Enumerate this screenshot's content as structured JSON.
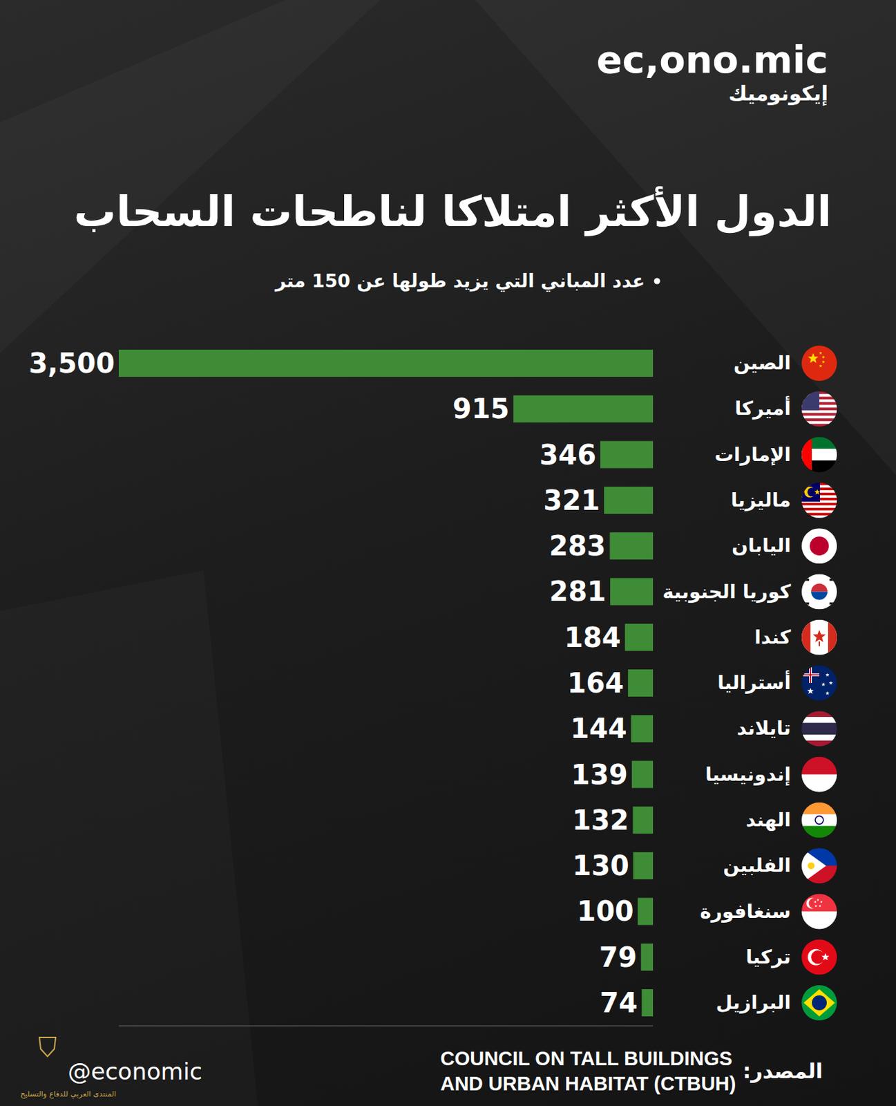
{
  "header": {
    "logo": "ec,ono.mic",
    "logo_arabic": "إيكونوميك"
  },
  "chart_data": {
    "type": "bar",
    "orientation": "horizontal",
    "title": "الدول الأكثر امتلاكا لناطحات السحاب",
    "subtitle": "عدد المباني التي يزيد طولها عن 150 متر",
    "categories": [
      "الصين",
      "أميركا",
      "الإمارات",
      "ماليزيا",
      "اليابان",
      "كوريا الجنوبية",
      "كندا",
      "أستراليا",
      "تايلاند",
      "إندونيسيا",
      "الهند",
      "الفلبين",
      "سنغافورة",
      "تركيا",
      "البرازيل"
    ],
    "values": [
      3500,
      915,
      346,
      321,
      283,
      281,
      184,
      164,
      144,
      139,
      132,
      130,
      100,
      79,
      74
    ],
    "value_labels": [
      "3,500",
      "915",
      "346",
      "321",
      "283",
      "281",
      "184",
      "164",
      "144",
      "139",
      "132",
      "130",
      "100",
      "79",
      "74"
    ],
    "color": "#3f8c36",
    "xlim": [
      0,
      3500
    ],
    "tick_labels": false,
    "data_labels": true,
    "grid": false
  },
  "footer": {
    "source_label": "المصدر:",
    "source": [
      "COUNCIL ON TALL BUILDINGS",
      "AND URBAN HABITAT (CTBUH)"
    ],
    "handle": "@economic",
    "watermark": "المنتدى العربي للدفاع والتسليح"
  }
}
